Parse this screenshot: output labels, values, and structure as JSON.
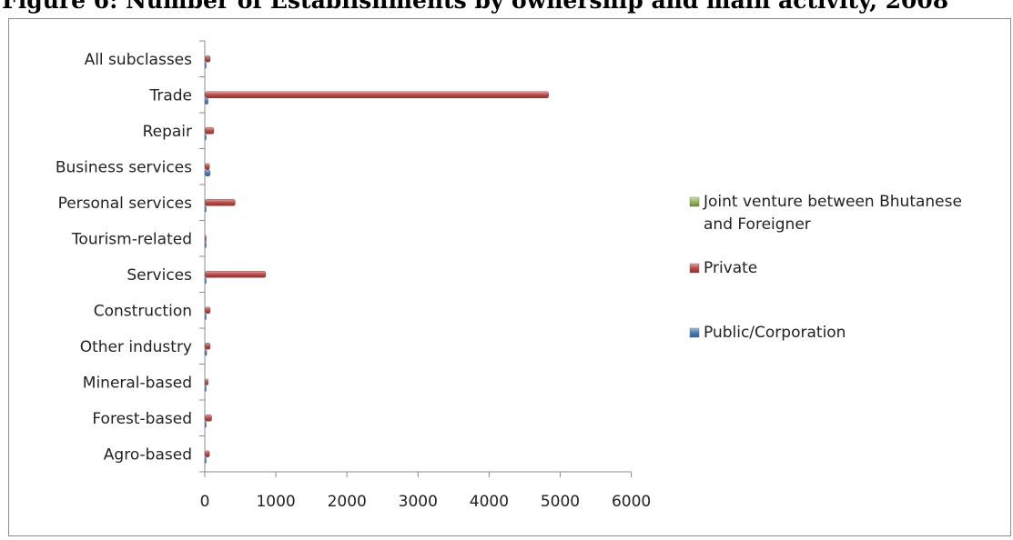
{
  "page": {
    "title": "Figure 6: Number of Establishments by ownership and main activity, 2008"
  },
  "chart_data": {
    "type": "bar",
    "orientation": "horizontal",
    "title": "Figure 6: Number of Establishments by ownership and main activity, 2008",
    "xlabel": "",
    "ylabel": "",
    "xlim": [
      0,
      6000
    ],
    "x_ticks": [
      0,
      1000,
      2000,
      3000,
      4000,
      5000,
      6000
    ],
    "gridlines": false,
    "legend_position": "right",
    "categories": [
      "Agro-based",
      "Forest-based",
      "Mineral-based",
      "Other industry",
      "Construction",
      "Services",
      "Tourism-related",
      "Personal services",
      "Business services",
      "Repair",
      "Trade",
      "All subclasses"
    ],
    "series": [
      {
        "name": "Joint venture between Bhutanese and Foreigner",
        "color": "#9bbb59",
        "values": [
          0,
          0,
          0,
          0,
          0,
          0,
          0,
          0,
          0,
          0,
          0,
          0
        ]
      },
      {
        "name": "Private",
        "color": "#c0504d",
        "values": [
          60,
          90,
          40,
          70,
          70,
          850,
          10,
          420,
          60,
          120,
          4830,
          70
        ]
      },
      {
        "name": "Public/Corporation",
        "color": "#4f81bd",
        "values": [
          5,
          5,
          5,
          20,
          5,
          5,
          5,
          10,
          70,
          5,
          40,
          5
        ]
      }
    ]
  }
}
